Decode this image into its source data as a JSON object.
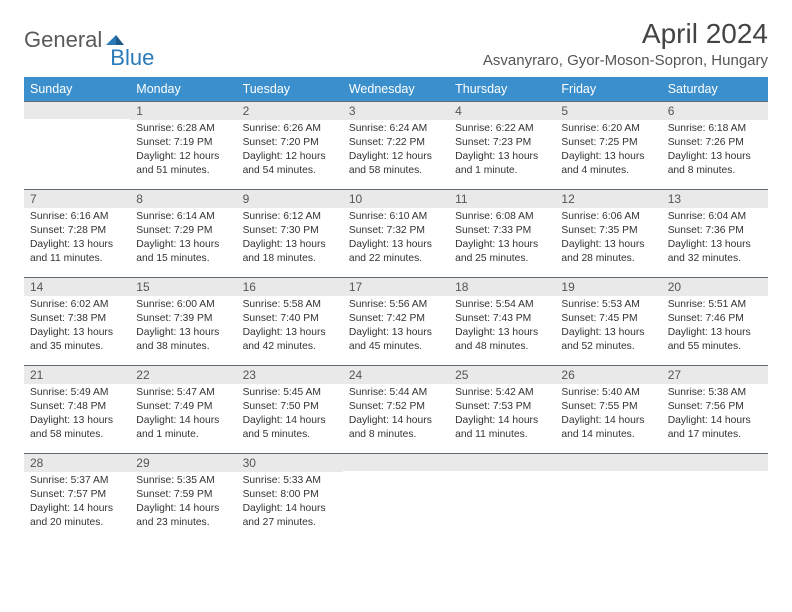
{
  "brand": {
    "general": "General",
    "blue": "Blue"
  },
  "title": "April 2024",
  "location": "Asvanyraro, Gyor-Moson-Sopron, Hungary",
  "colors": {
    "header_bg": "#3b8fcc",
    "header_text": "#ffffff",
    "daynum_bg": "#e9e9e9",
    "daynum_border": "#5f6b74",
    "body_text": "#333333",
    "brand_blue": "#2a7ab8",
    "brand_gray": "#5a5a5a"
  },
  "typography": {
    "title_fontsize": 28,
    "location_fontsize": 15,
    "weekday_fontsize": 12.5,
    "daynum_fontsize": 12,
    "body_fontsize": 10.3
  },
  "weekdays": [
    "Sunday",
    "Monday",
    "Tuesday",
    "Wednesday",
    "Thursday",
    "Friday",
    "Saturday"
  ],
  "weeks": [
    [
      null,
      {
        "n": "1",
        "sr": "Sunrise: 6:28 AM",
        "ss": "Sunset: 7:19 PM",
        "dl": "Daylight: 12 hours and 51 minutes."
      },
      {
        "n": "2",
        "sr": "Sunrise: 6:26 AM",
        "ss": "Sunset: 7:20 PM",
        "dl": "Daylight: 12 hours and 54 minutes."
      },
      {
        "n": "3",
        "sr": "Sunrise: 6:24 AM",
        "ss": "Sunset: 7:22 PM",
        "dl": "Daylight: 12 hours and 58 minutes."
      },
      {
        "n": "4",
        "sr": "Sunrise: 6:22 AM",
        "ss": "Sunset: 7:23 PM",
        "dl": "Daylight: 13 hours and 1 minute."
      },
      {
        "n": "5",
        "sr": "Sunrise: 6:20 AM",
        "ss": "Sunset: 7:25 PM",
        "dl": "Daylight: 13 hours and 4 minutes."
      },
      {
        "n": "6",
        "sr": "Sunrise: 6:18 AM",
        "ss": "Sunset: 7:26 PM",
        "dl": "Daylight: 13 hours and 8 minutes."
      }
    ],
    [
      {
        "n": "7",
        "sr": "Sunrise: 6:16 AM",
        "ss": "Sunset: 7:28 PM",
        "dl": "Daylight: 13 hours and 11 minutes."
      },
      {
        "n": "8",
        "sr": "Sunrise: 6:14 AM",
        "ss": "Sunset: 7:29 PM",
        "dl": "Daylight: 13 hours and 15 minutes."
      },
      {
        "n": "9",
        "sr": "Sunrise: 6:12 AM",
        "ss": "Sunset: 7:30 PM",
        "dl": "Daylight: 13 hours and 18 minutes."
      },
      {
        "n": "10",
        "sr": "Sunrise: 6:10 AM",
        "ss": "Sunset: 7:32 PM",
        "dl": "Daylight: 13 hours and 22 minutes."
      },
      {
        "n": "11",
        "sr": "Sunrise: 6:08 AM",
        "ss": "Sunset: 7:33 PM",
        "dl": "Daylight: 13 hours and 25 minutes."
      },
      {
        "n": "12",
        "sr": "Sunrise: 6:06 AM",
        "ss": "Sunset: 7:35 PM",
        "dl": "Daylight: 13 hours and 28 minutes."
      },
      {
        "n": "13",
        "sr": "Sunrise: 6:04 AM",
        "ss": "Sunset: 7:36 PM",
        "dl": "Daylight: 13 hours and 32 minutes."
      }
    ],
    [
      {
        "n": "14",
        "sr": "Sunrise: 6:02 AM",
        "ss": "Sunset: 7:38 PM",
        "dl": "Daylight: 13 hours and 35 minutes."
      },
      {
        "n": "15",
        "sr": "Sunrise: 6:00 AM",
        "ss": "Sunset: 7:39 PM",
        "dl": "Daylight: 13 hours and 38 minutes."
      },
      {
        "n": "16",
        "sr": "Sunrise: 5:58 AM",
        "ss": "Sunset: 7:40 PM",
        "dl": "Daylight: 13 hours and 42 minutes."
      },
      {
        "n": "17",
        "sr": "Sunrise: 5:56 AM",
        "ss": "Sunset: 7:42 PM",
        "dl": "Daylight: 13 hours and 45 minutes."
      },
      {
        "n": "18",
        "sr": "Sunrise: 5:54 AM",
        "ss": "Sunset: 7:43 PM",
        "dl": "Daylight: 13 hours and 48 minutes."
      },
      {
        "n": "19",
        "sr": "Sunrise: 5:53 AM",
        "ss": "Sunset: 7:45 PM",
        "dl": "Daylight: 13 hours and 52 minutes."
      },
      {
        "n": "20",
        "sr": "Sunrise: 5:51 AM",
        "ss": "Sunset: 7:46 PM",
        "dl": "Daylight: 13 hours and 55 minutes."
      }
    ],
    [
      {
        "n": "21",
        "sr": "Sunrise: 5:49 AM",
        "ss": "Sunset: 7:48 PM",
        "dl": "Daylight: 13 hours and 58 minutes."
      },
      {
        "n": "22",
        "sr": "Sunrise: 5:47 AM",
        "ss": "Sunset: 7:49 PM",
        "dl": "Daylight: 14 hours and 1 minute."
      },
      {
        "n": "23",
        "sr": "Sunrise: 5:45 AM",
        "ss": "Sunset: 7:50 PM",
        "dl": "Daylight: 14 hours and 5 minutes."
      },
      {
        "n": "24",
        "sr": "Sunrise: 5:44 AM",
        "ss": "Sunset: 7:52 PM",
        "dl": "Daylight: 14 hours and 8 minutes."
      },
      {
        "n": "25",
        "sr": "Sunrise: 5:42 AM",
        "ss": "Sunset: 7:53 PM",
        "dl": "Daylight: 14 hours and 11 minutes."
      },
      {
        "n": "26",
        "sr": "Sunrise: 5:40 AM",
        "ss": "Sunset: 7:55 PM",
        "dl": "Daylight: 14 hours and 14 minutes."
      },
      {
        "n": "27",
        "sr": "Sunrise: 5:38 AM",
        "ss": "Sunset: 7:56 PM",
        "dl": "Daylight: 14 hours and 17 minutes."
      }
    ],
    [
      {
        "n": "28",
        "sr": "Sunrise: 5:37 AM",
        "ss": "Sunset: 7:57 PM",
        "dl": "Daylight: 14 hours and 20 minutes."
      },
      {
        "n": "29",
        "sr": "Sunrise: 5:35 AM",
        "ss": "Sunset: 7:59 PM",
        "dl": "Daylight: 14 hours and 23 minutes."
      },
      {
        "n": "30",
        "sr": "Sunrise: 5:33 AM",
        "ss": "Sunset: 8:00 PM",
        "dl": "Daylight: 14 hours and 27 minutes."
      },
      null,
      null,
      null,
      null
    ]
  ]
}
